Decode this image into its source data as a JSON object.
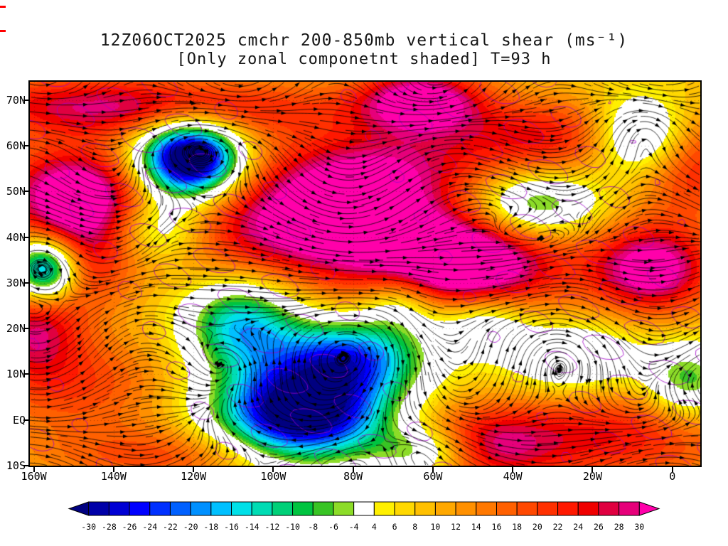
{
  "title": {
    "line1": "12Z06OCT2025 cmchr 200-850mb vertical shear (ms⁻¹)",
    "line2": "[Only zonal componetnt shaded] T=93 h"
  },
  "axes": {
    "lat_range": [
      -10,
      74
    ],
    "lon_range": [
      -161,
      7
    ],
    "lat_ticks": [
      {
        "label": "70N",
        "value": 70
      },
      {
        "label": "60N",
        "value": 60
      },
      {
        "label": "50N",
        "value": 50
      },
      {
        "label": "40N",
        "value": 40
      },
      {
        "label": "30N",
        "value": 30
      },
      {
        "label": "20N",
        "value": 20
      },
      {
        "label": "10N",
        "value": 10
      },
      {
        "label": "EQ",
        "value": 0
      },
      {
        "label": "10S",
        "value": -10
      }
    ],
    "lon_ticks": [
      {
        "label": "160W",
        "value": -160
      },
      {
        "label": "140W",
        "value": -140
      },
      {
        "label": "120W",
        "value": -120
      },
      {
        "label": "100W",
        "value": -100
      },
      {
        "label": "80W",
        "value": -80
      },
      {
        "label": "60W",
        "value": -60
      },
      {
        "label": "40W",
        "value": -40
      },
      {
        "label": "20W",
        "value": -20
      },
      {
        "label": "0",
        "value": 0
      }
    ]
  },
  "colorbar": {
    "levels": [
      -30,
      -28,
      -26,
      -24,
      -22,
      -20,
      -18,
      -16,
      -14,
      -12,
      -10,
      -8,
      -6,
      -4,
      4,
      6,
      8,
      10,
      12,
      14,
      16,
      18,
      20,
      22,
      24,
      26,
      28,
      30
    ],
    "labels": [
      "-30",
      "-28",
      "-26",
      "-24",
      "-22",
      "-20",
      "-18",
      "-16",
      "-14",
      "-12",
      "-10",
      "-8",
      "-6",
      "-4",
      "4",
      "6",
      "8",
      "10",
      "12",
      "14",
      "16",
      "18",
      "20",
      "22",
      "24",
      "26",
      "28",
      "30"
    ],
    "colors": [
      "#000080",
      "#0000a8",
      "#0000d4",
      "#0000ff",
      "#0030ff",
      "#0060ff",
      "#0090ff",
      "#00c0ff",
      "#00e0e8",
      "#00dcb4",
      "#00d078",
      "#00c440",
      "#38c424",
      "#8cdc28",
      "#ffffff",
      "#fff000",
      "#ffd800",
      "#ffc000",
      "#ffa800",
      "#ff9000",
      "#ff7800",
      "#ff6000",
      "#ff4800",
      "#ff3000",
      "#ff1800",
      "#f00000",
      "#e00040",
      "#e6007a",
      "#ff00aa"
    ],
    "outline": "#000000"
  },
  "chart_data": {
    "type": "heatmap",
    "subtype": "streamline-shaded-map",
    "title": "12Z06OCT2025 cmchr 200-850mb vertical shear (ms⁻¹)",
    "subtitle": "[Only zonal componetnt shaded] T=93 h",
    "model": "cmchr",
    "init_time": "12Z06OCT2025",
    "forecast_hour": "T=93 h",
    "layer": "200-850mb",
    "variable": "vertical wind shear, zonal component shaded",
    "units": "ms⁻¹",
    "shaded_value_range": [
      -30,
      30
    ],
    "field_base": 8,
    "field_features": [
      {
        "lon": -150,
        "lat": 50,
        "sx": 13,
        "sy": 7,
        "amp": 26
      },
      {
        "lon": -150,
        "lat": 69,
        "sx": 25,
        "sy": 5,
        "amp": 14
      },
      {
        "lon": -112,
        "lat": 68,
        "sx": 30,
        "sy": 5,
        "amp": 12
      },
      {
        "lon": -63,
        "lat": 70,
        "sx": 11,
        "sy": 5,
        "amp": 24
      },
      {
        "lon": -30,
        "lat": 62,
        "sx": 22,
        "sy": 6,
        "amp": 16
      },
      {
        "lon": -88,
        "lat": 43,
        "sx": 24,
        "sy": 9,
        "amp": 28
      },
      {
        "lon": -52,
        "lat": 33,
        "sx": 17,
        "sy": 8,
        "amp": 30
      },
      {
        "lon": -150,
        "lat": 35,
        "sx": 10,
        "sy": 8,
        "amp": 18
      },
      {
        "lon": -5,
        "lat": 33,
        "sx": 11,
        "sy": 7,
        "amp": 26
      },
      {
        "lon": 5,
        "lat": 55,
        "sx": 10,
        "sy": 8,
        "amp": 14
      },
      {
        "lon": -150,
        "lat": 8,
        "sx": 17,
        "sy": 8,
        "amp": 12
      },
      {
        "lon": -160,
        "lat": 20,
        "sx": 8,
        "sy": 7,
        "amp": 16
      },
      {
        "lon": -15,
        "lat": -3,
        "sx": 24,
        "sy": 8,
        "amp": 16
      },
      {
        "lon": -48,
        "lat": -6,
        "sx": 13,
        "sy": 6,
        "amp": 16
      },
      {
        "lon": -120,
        "lat": -8,
        "sx": 28,
        "sy": 5,
        "amp": 12
      },
      {
        "lon": -75,
        "lat": 55,
        "sx": 18,
        "sy": 6,
        "amp": 14
      },
      {
        "lon": -121,
        "lat": 57,
        "sx": 9,
        "sy": 6,
        "amp": -52
      },
      {
        "lon": -93,
        "lat": 1,
        "sx": 15,
        "sy": 8,
        "amp": -46
      },
      {
        "lon": -108,
        "lat": 21,
        "sx": 10,
        "sy": 7,
        "amp": -24
      },
      {
        "lon": -80,
        "lat": 14,
        "sx": 13,
        "sy": 6,
        "amp": -26
      },
      {
        "lon": -8,
        "lat": 62,
        "sx": 9,
        "sy": 6,
        "amp": -24
      },
      {
        "lon": -35,
        "lat": 47,
        "sx": 11,
        "sy": 5,
        "amp": -20
      },
      {
        "lon": -48,
        "lat": 22,
        "sx": 9,
        "sy": 5,
        "amp": -16
      },
      {
        "lon": -157,
        "lat": 33,
        "sx": 6,
        "sy": 5,
        "amp": -40
      },
      {
        "lon": -62,
        "lat": -7,
        "sx": 9,
        "sy": 4,
        "amp": -18
      },
      {
        "lon": -128,
        "lat": 42,
        "sx": 8,
        "sy": 5,
        "amp": -14
      },
      {
        "lon": 4,
        "lat": 8,
        "sx": 8,
        "sy": 6,
        "amp": -18
      },
      {
        "lon": -68,
        "lat": 26,
        "sx": 7,
        "sy": 5,
        "amp": -14
      },
      {
        "lon": -25,
        "lat": 13,
        "sx": 12,
        "sy": 6,
        "amp": -14
      }
    ],
    "wind_params": {
      "base": 4,
      "along": 0.3,
      "grad": 2.6,
      "wave": 6
    },
    "contour_params": {
      "color": "#a000c8",
      "levels": [
        -9,
        9
      ]
    },
    "streamline_color": "#000000",
    "graticule_color": "rgba(0,0,0,0.30)"
  },
  "artifacts": {
    "color": "#ff0000"
  }
}
